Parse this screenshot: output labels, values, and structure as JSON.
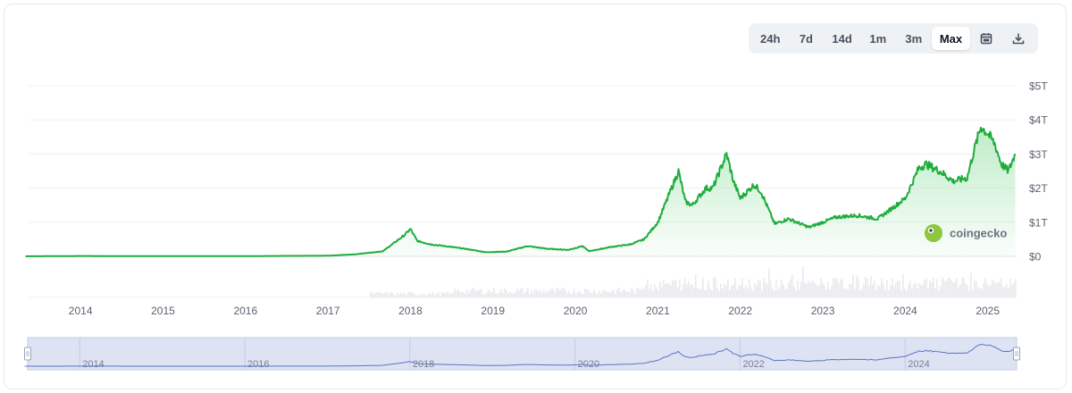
{
  "toolbar": {
    "ranges": [
      "24h",
      "7d",
      "14d",
      "1m",
      "3m",
      "Max"
    ],
    "active_range": "Max",
    "icons": [
      "calendar-icon",
      "download-icon"
    ]
  },
  "watermark": "coingecko",
  "colors": {
    "line": "#1fad3d",
    "fill_top": "#a9e6b5",
    "navigator_bg": "#dde3f3",
    "navigator_line": "#5a75c2",
    "volume": "#e9eaee"
  },
  "chart_data": {
    "type": "area",
    "title": "",
    "xlabel": "",
    "ylabel": "",
    "ylim": [
      0,
      5
    ],
    "y_ticks": [
      "$0",
      "$1T",
      "$2T",
      "$3T",
      "$4T",
      "$5T"
    ],
    "x_ticks": [
      "2014",
      "2015",
      "2016",
      "2017",
      "2018",
      "2019",
      "2020",
      "2021",
      "2022",
      "2023",
      "2024",
      "2025"
    ],
    "navigator_ticks": [
      "2014",
      "2016",
      "2018",
      "2020",
      "2022",
      "2024"
    ],
    "legend": "none",
    "grid": true,
    "series": [
      {
        "x": [
          "2013-05",
          "2014-01",
          "2015-01",
          "2016-01",
          "2017-01",
          "2017-05",
          "2017-09",
          "2017-12",
          "2018-01",
          "2018-02",
          "2018-04",
          "2018-06",
          "2018-09",
          "2018-12",
          "2019-03",
          "2019-06",
          "2019-09",
          "2019-12",
          "2020-02",
          "2020-03",
          "2020-06",
          "2020-09",
          "2020-11",
          "2021-01",
          "2021-02",
          "2021-04",
          "2021-05",
          "2021-06",
          "2021-08",
          "2021-09",
          "2021-11",
          "2021-12",
          "2022-01",
          "2022-03",
          "2022-04",
          "2022-06",
          "2022-08",
          "2022-11",
          "2023-01",
          "2023-03",
          "2023-06",
          "2023-09",
          "2023-11",
          "2024-01",
          "2024-03",
          "2024-04",
          "2024-06",
          "2024-08",
          "2024-10",
          "2024-11",
          "2024-12",
          "2025-01",
          "2025-02",
          "2025-03",
          "2025-04",
          "2025-05"
        ],
        "values": [
          0.001,
          0.01,
          0.005,
          0.007,
          0.018,
          0.06,
          0.15,
          0.6,
          0.8,
          0.45,
          0.35,
          0.3,
          0.22,
          0.12,
          0.14,
          0.3,
          0.22,
          0.19,
          0.3,
          0.15,
          0.27,
          0.35,
          0.5,
          1.0,
          1.5,
          2.5,
          1.6,
          1.5,
          2.0,
          2.0,
          3.0,
          2.2,
          1.7,
          2.1,
          1.9,
          0.95,
          1.1,
          0.85,
          1.0,
          1.15,
          1.2,
          1.1,
          1.4,
          1.7,
          2.6,
          2.7,
          2.5,
          2.2,
          2.3,
          3.1,
          3.8,
          3.6,
          3.3,
          2.7,
          2.5,
          3.0
        ]
      }
    ]
  }
}
